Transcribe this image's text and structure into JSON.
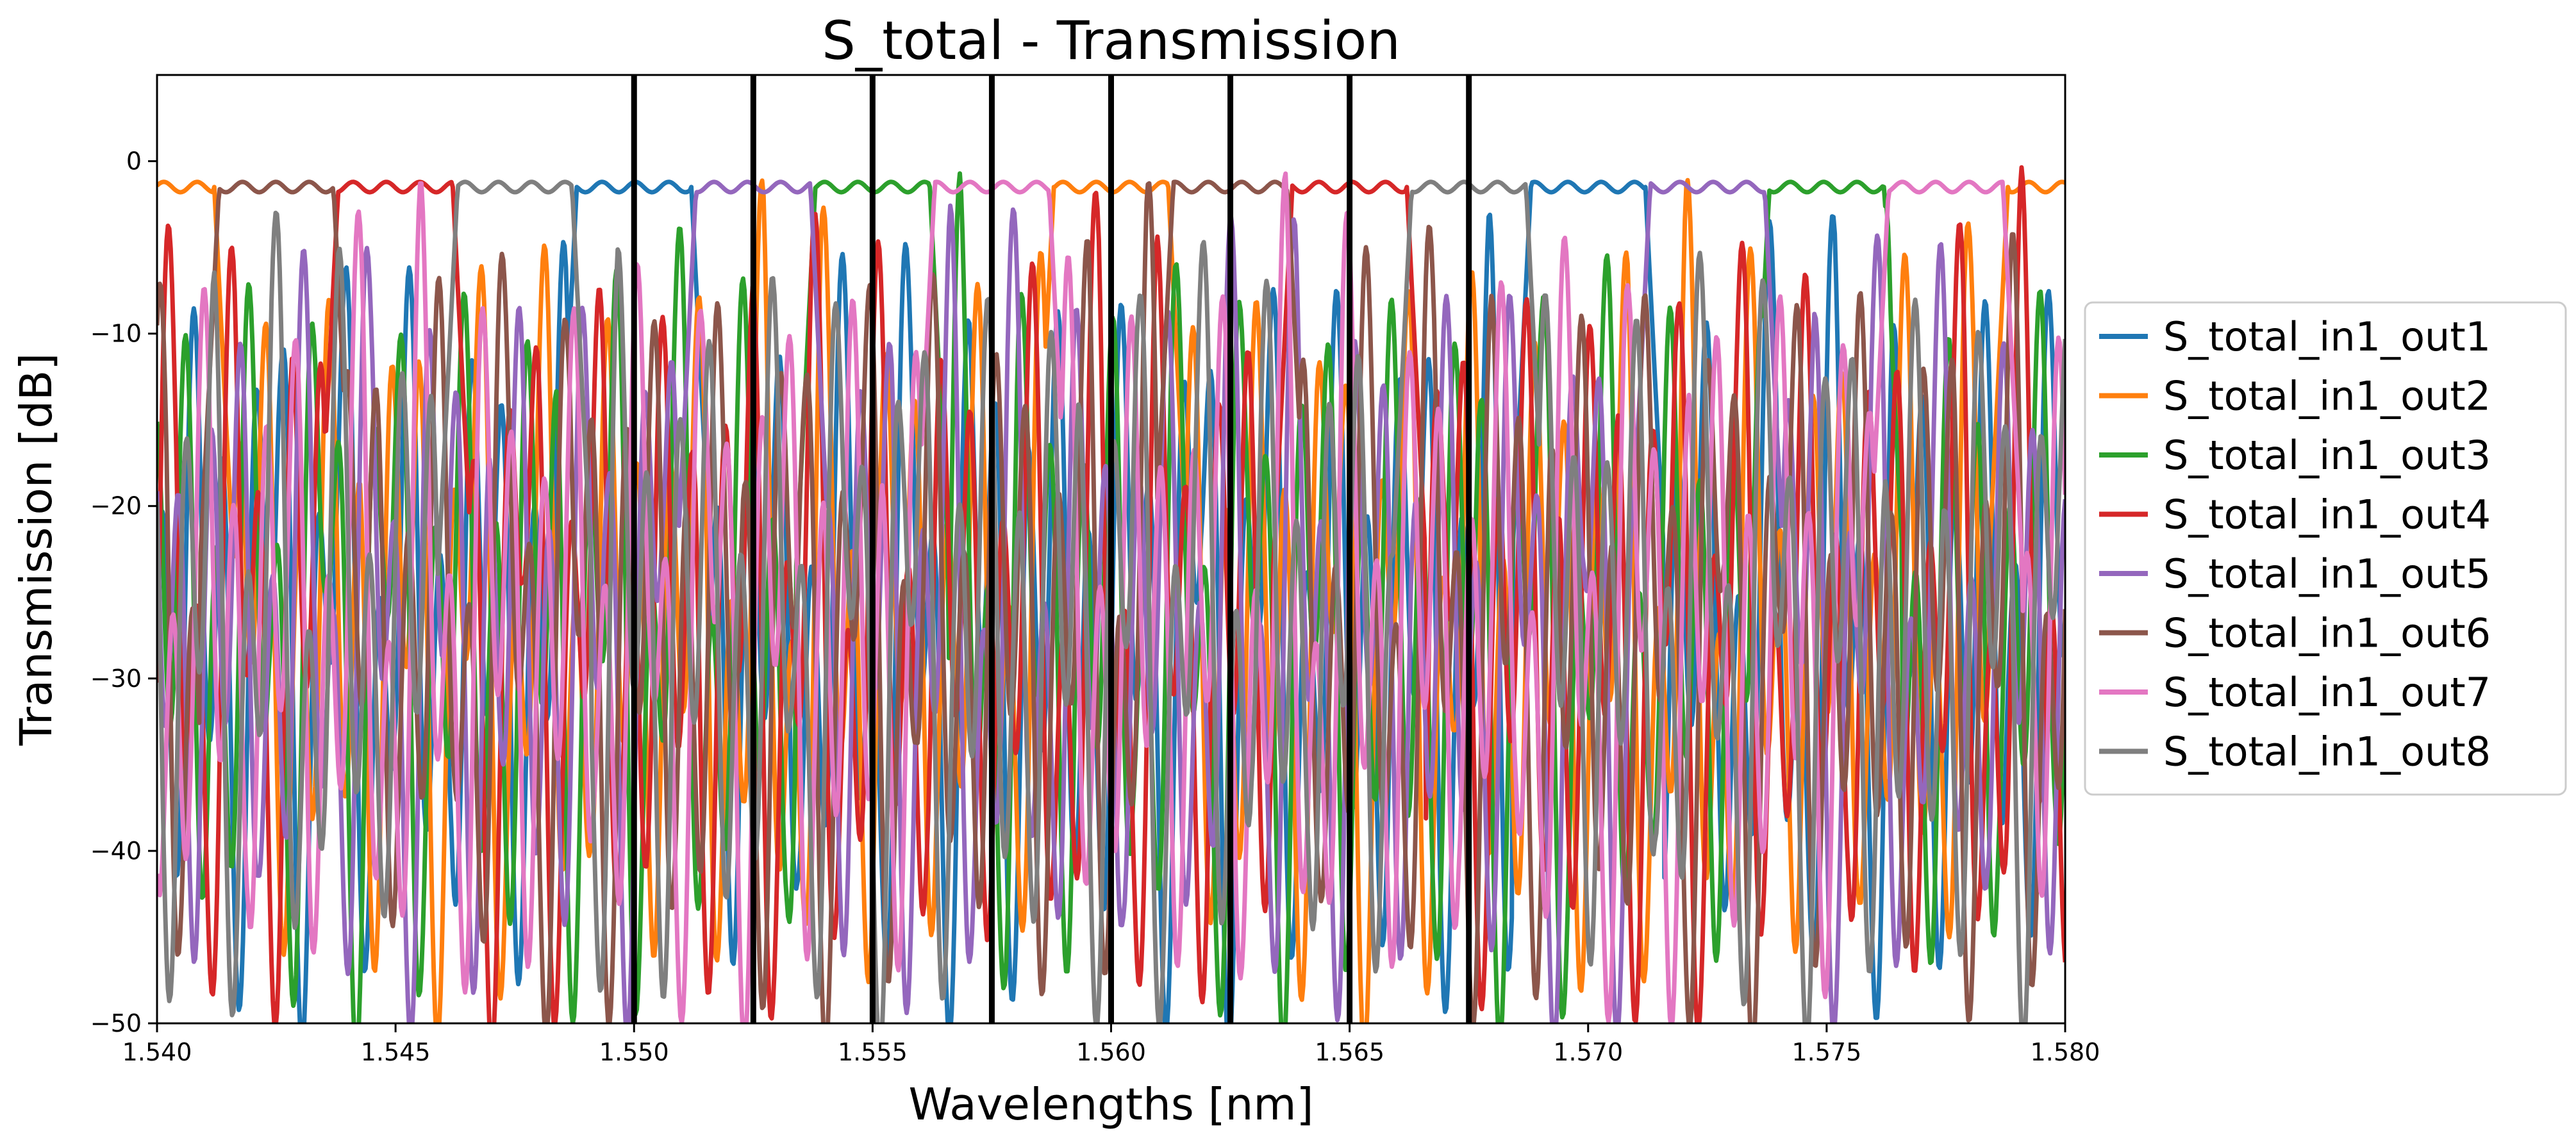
{
  "chart_data": {
    "type": "line",
    "title": "S_total - Transmission",
    "xlabel": "Wavelengths [nm]",
    "ylabel": "Transmission [dB]",
    "xlim": [
      1.54,
      1.58
    ],
    "ylim": [
      -50,
      5
    ],
    "x_ticks": [
      1.54,
      1.545,
      1.55,
      1.555,
      1.56,
      1.565,
      1.57,
      1.575,
      1.58
    ],
    "x_tick_labels": [
      "1.540",
      "1.545",
      "1.550",
      "1.555",
      "1.560",
      "1.565",
      "1.570",
      "1.575",
      "1.580"
    ],
    "y_ticks": [
      0,
      -10,
      -20,
      -30,
      -40,
      -50
    ],
    "y_tick_labels": [
      "0",
      "−10",
      "−20",
      "−30",
      "−40",
      "−50"
    ],
    "vertical_lines": [
      1.55,
      1.5525,
      1.555,
      1.5575,
      1.56,
      1.5625,
      1.565,
      1.5675
    ],
    "vertical_line_color": "#000000",
    "legend_placement": "right, outside axes",
    "channel_spacing_nm": 0.0025,
    "series": [
      {
        "name": "S_total_in1_out1",
        "color": "#1f77b4",
        "passband_centers": [
          1.55,
          1.57
        ]
      },
      {
        "name": "S_total_in1_out2",
        "color": "#ff7f0e",
        "passband_centers": [
          1.54,
          1.56,
          1.58
        ]
      },
      {
        "name": "S_total_in1_out3",
        "color": "#2ca02c",
        "passband_centers": [
          1.555,
          1.575
        ]
      },
      {
        "name": "S_total_in1_out4",
        "color": "#d62728",
        "passband_centers": [
          1.545,
          1.565
        ]
      },
      {
        "name": "S_total_in1_out5",
        "color": "#9467bd",
        "passband_centers": [
          1.5525,
          1.5725
        ]
      },
      {
        "name": "S_total_in1_out6",
        "color": "#8c564b",
        "passband_centers": [
          1.5425,
          1.5625
        ]
      },
      {
        "name": "S_total_in1_out7",
        "color": "#e377c2",
        "passband_centers": [
          1.5575,
          1.5775
        ]
      },
      {
        "name": "S_total_in1_out8",
        "color": "#7f7f7f",
        "passband_centers": [
          1.5475,
          1.5675
        ]
      }
    ],
    "passband_level_db": -1.5,
    "sidelobe_level_db": -18,
    "passband_halfwidth_nm": 0.0012
  }
}
